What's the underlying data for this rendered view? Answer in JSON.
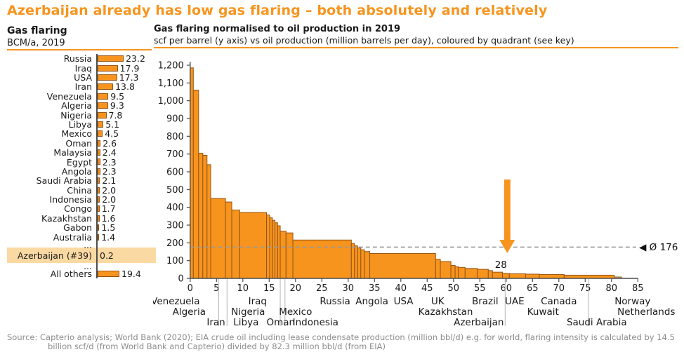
{
  "title": "Azerbaijan already has low gas flaring – both absolutely and relatively",
  "left_panel": {
    "header": "Gas flaring",
    "subheader": "BCM/a, 2019",
    "rows": [
      {
        "label": "Russia",
        "value": 23.2,
        "display": "23.2"
      },
      {
        "label": "Iraq",
        "value": 17.9,
        "display": "17.9"
      },
      {
        "label": "USA",
        "value": 17.3,
        "display": "17.3"
      },
      {
        "label": "Iran",
        "value": 13.8,
        "display": "13.8"
      },
      {
        "label": "Venezuela",
        "value": 9.5,
        "display": "9.5"
      },
      {
        "label": "Algeria",
        "value": 9.3,
        "display": "9.3"
      },
      {
        "label": "Nigeria",
        "value": 7.8,
        "display": "7.8"
      },
      {
        "label": "Libya",
        "value": 5.1,
        "display": "5.1"
      },
      {
        "label": "Mexico",
        "value": 4.5,
        "display": "4.5"
      },
      {
        "label": "Oman",
        "value": 2.6,
        "display": "2.6"
      },
      {
        "label": "Malaysia",
        "value": 2.4,
        "display": "2.4"
      },
      {
        "label": "Egypt",
        "value": 2.3,
        "display": "2.3"
      },
      {
        "label": "Angola",
        "value": 2.3,
        "display": "2.3"
      },
      {
        "label": "Saudi Arabia",
        "value": 2.1,
        "display": "2.1"
      },
      {
        "label": "China",
        "value": 2.0,
        "display": "2.0"
      },
      {
        "label": "Indonesia",
        "value": 2.0,
        "display": "2.0"
      },
      {
        "label": "Congo",
        "value": 1.7,
        "display": "1.7"
      },
      {
        "label": "Kazakhstan",
        "value": 1.6,
        "display": "1.6"
      },
      {
        "label": "Gabon",
        "value": 1.5,
        "display": "1.5"
      },
      {
        "label": "Australia",
        "value": 1.4,
        "display": "1.4"
      },
      {
        "label": "...",
        "dots": true
      },
      {
        "label": "Azerbaijan (#39)",
        "value": 0.2,
        "display": "0.2",
        "highlight": true
      },
      {
        "label": "...",
        "dots": true
      },
      {
        "label": "All others",
        "value": 19.4,
        "display": "19.4"
      }
    ]
  },
  "chart_data": {
    "type": "bar",
    "variant": "variable-width-steps",
    "title": "Gas flaring normalised to oil production in 2019",
    "subtitle": "scf per barrel (y axis) vs oil production (million barrels per day), coloured by quadrant (see key)",
    "xlabel": "oil production (million barrels per day)",
    "ylabel": "scf per barrel",
    "xlim": [
      0,
      85
    ],
    "ylim": [
      0,
      1200
    ],
    "grid": false,
    "y_ticks": [
      {
        "v": 0,
        "label": "0"
      },
      {
        "v": 100,
        "label": "100"
      },
      {
        "v": 200,
        "label": "200"
      },
      {
        "v": 300,
        "label": "300"
      },
      {
        "v": 400,
        "label": "400"
      },
      {
        "v": 500,
        "label": "500"
      },
      {
        "v": 600,
        "label": "600"
      },
      {
        "v": 700,
        "label": "700"
      },
      {
        "v": 800,
        "label": "800"
      },
      {
        "v": 900,
        "label": "900"
      },
      {
        "v": 1000,
        "label": "1,000"
      },
      {
        "v": 1100,
        "label": "1,100"
      },
      {
        "v": 1200,
        "label": "1,200"
      }
    ],
    "x_ticks": [
      {
        "v": 0,
        "label": "0"
      },
      {
        "v": 5,
        "label": "5"
      },
      {
        "v": 10,
        "label": "10"
      },
      {
        "v": 15,
        "label": "15"
      },
      {
        "v": 20,
        "label": "20"
      },
      {
        "v": 25,
        "label": "25"
      },
      {
        "v": 30,
        "label": "30"
      },
      {
        "v": 35,
        "label": "35"
      },
      {
        "v": 40,
        "label": "40"
      },
      {
        "v": 45,
        "label": "45"
      },
      {
        "v": 50,
        "label": "50"
      },
      {
        "v": 55,
        "label": "55"
      },
      {
        "v": 60,
        "label": "60"
      },
      {
        "v": 65,
        "label": "65"
      },
      {
        "v": 70,
        "label": "70"
      },
      {
        "v": 75,
        "label": "75"
      },
      {
        "v": 80,
        "label": "80"
      },
      {
        "v": 85,
        "label": "85"
      }
    ],
    "steps": [
      {
        "x0": 0.0,
        "x1": 0.6,
        "y": 1185
      },
      {
        "x0": 0.6,
        "x1": 1.6,
        "y": 1060
      },
      {
        "x0": 1.6,
        "x1": 2.4,
        "y": 705
      },
      {
        "x0": 2.4,
        "x1": 3.2,
        "y": 693
      },
      {
        "x0": 3.2,
        "x1": 3.9,
        "y": 640
      },
      {
        "x0": 3.9,
        "x1": 6.7,
        "y": 450
      },
      {
        "x0": 6.7,
        "x1": 7.9,
        "y": 430
      },
      {
        "x0": 7.9,
        "x1": 9.4,
        "y": 385
      },
      {
        "x0": 9.4,
        "x1": 14.5,
        "y": 371
      },
      {
        "x0": 14.5,
        "x1": 15.1,
        "y": 357
      },
      {
        "x0": 15.1,
        "x1": 15.6,
        "y": 341
      },
      {
        "x0": 15.6,
        "x1": 16.1,
        "y": 327
      },
      {
        "x0": 16.1,
        "x1": 16.6,
        "y": 313
      },
      {
        "x0": 16.6,
        "x1": 17.1,
        "y": 296
      },
      {
        "x0": 17.1,
        "x1": 18.2,
        "y": 266
      },
      {
        "x0": 18.2,
        "x1": 19.5,
        "y": 256
      },
      {
        "x0": 19.5,
        "x1": 30.6,
        "y": 216
      },
      {
        "x0": 30.6,
        "x1": 31.2,
        "y": 197
      },
      {
        "x0": 31.2,
        "x1": 31.8,
        "y": 183
      },
      {
        "x0": 31.8,
        "x1": 32.4,
        "y": 171
      },
      {
        "x0": 32.4,
        "x1": 33.1,
        "y": 161
      },
      {
        "x0": 33.1,
        "x1": 34.1,
        "y": 151
      },
      {
        "x0": 34.1,
        "x1": 46.6,
        "y": 140
      },
      {
        "x0": 46.6,
        "x1": 47.5,
        "y": 108
      },
      {
        "x0": 47.5,
        "x1": 49.5,
        "y": 95
      },
      {
        "x0": 49.5,
        "x1": 50.3,
        "y": 73
      },
      {
        "x0": 50.3,
        "x1": 50.9,
        "y": 66
      },
      {
        "x0": 50.9,
        "x1": 52.2,
        "y": 62
      },
      {
        "x0": 52.2,
        "x1": 54.5,
        "y": 56
      },
      {
        "x0": 54.5,
        "x1": 56.6,
        "y": 51
      },
      {
        "x0": 56.6,
        "x1": 57.4,
        "y": 44
      },
      {
        "x0": 57.4,
        "x1": 59.3,
        "y": 35
      },
      {
        "x0": 59.3,
        "x1": 60.6,
        "y": 28
      },
      {
        "x0": 60.6,
        "x1": 63.7,
        "y": 26
      },
      {
        "x0": 63.7,
        "x1": 66.3,
        "y": 24
      },
      {
        "x0": 66.3,
        "x1": 71.0,
        "y": 22
      },
      {
        "x0": 71.0,
        "x1": 80.5,
        "y": 18
      },
      {
        "x0": 80.5,
        "x1": 81.9,
        "y": 8,
        "color": "tan"
      }
    ],
    "mean_line": {
      "value": 176,
      "label": "◀ Ø 176"
    },
    "annotation_arrow": {
      "x": 60.2,
      "label": "28"
    },
    "country_labels": [
      {
        "name": "Venezuela",
        "x": -2.8,
        "row": 1
      },
      {
        "name": "Algeria",
        "x": -0.2,
        "row": 2
      },
      {
        "name": "Iran",
        "x": 4.9,
        "row": 3
      },
      {
        "name": "Iraq",
        "x": 12.8,
        "row": 1
      },
      {
        "name": "Nigeria",
        "x": 11.0,
        "row": 2
      },
      {
        "name": "Libya",
        "x": 10.6,
        "row": 3
      },
      {
        "name": "Oman",
        "x": 17.2,
        "row": 3
      },
      {
        "name": "Mexico",
        "x": 20.0,
        "row": 2
      },
      {
        "name": "Indonesia",
        "x": 23.8,
        "row": 3
      },
      {
        "name": "Russia",
        "x": 27.5,
        "row": 1
      },
      {
        "name": "Angola",
        "x": 34.5,
        "row": 1
      },
      {
        "name": "USA",
        "x": 40.5,
        "row": 1
      },
      {
        "name": "UK",
        "x": 47.0,
        "row": 1
      },
      {
        "name": "Kazakhstan",
        "x": 48.5,
        "row": 2
      },
      {
        "name": "Azerbaijan",
        "x": 54.8,
        "row": 3
      },
      {
        "name": "Brazil",
        "x": 56.0,
        "row": 1
      },
      {
        "name": "UAE",
        "x": 61.6,
        "row": 1
      },
      {
        "name": "Kuwait",
        "x": 67.0,
        "row": 2
      },
      {
        "name": "Canada",
        "x": 70.0,
        "row": 1
      },
      {
        "name": "Saudi Arabia",
        "x": 77.2,
        "row": 3
      },
      {
        "name": "Norway",
        "x": 84.0,
        "row": 1
      },
      {
        "name": "Netherlands",
        "x": 86.6,
        "row": 2
      }
    ],
    "leader_lines_x_units": [
      5.4,
      7.0,
      17.1,
      18.0,
      59.8,
      75.6
    ]
  },
  "source": {
    "line1": "Source: Capterio analysis; World Bank (2020); EIA crude oil including lease condensate production (million bbl/d) e.g. for world, flaring intensity is calculated by 14.5",
    "line2": "billion scf/d (from World Bank and Capterio) divided by 82.3 million bbl/d (from EIA)"
  },
  "colors": {
    "accent_orange": "#F7941E",
    "bar_fill": "#F7941E",
    "bar_border": "#955413",
    "tan_fill": "#C9A063",
    "tan_border": "#8a6a35",
    "highlight": "#FBD9A3",
    "dashed_line": "#999999",
    "leader_line": "#b3b3b3",
    "axis": "#4d4d4d",
    "source_text": "#8C8C8C"
  }
}
